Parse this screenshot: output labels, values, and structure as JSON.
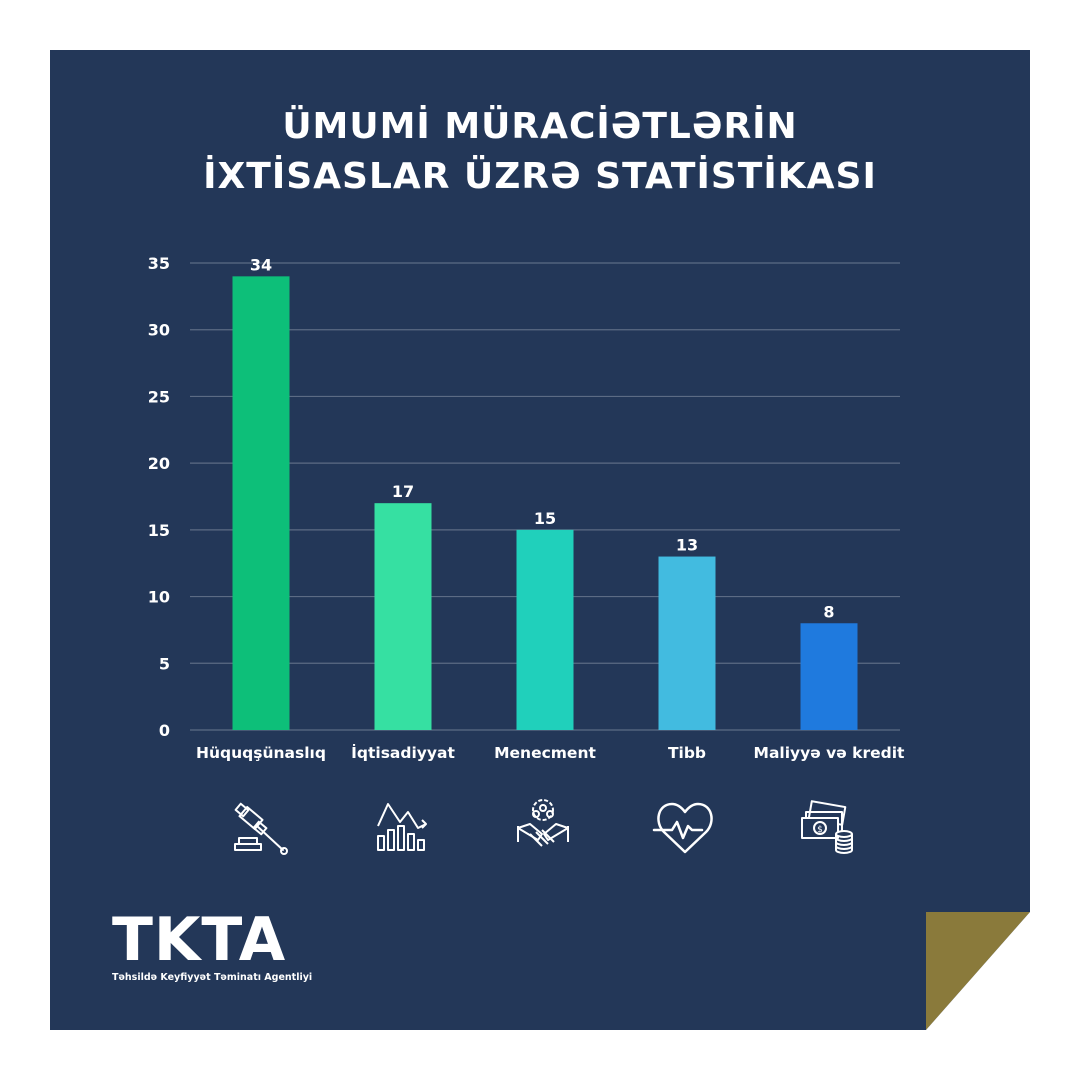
{
  "title": {
    "line1": "ÜMUMİ MÜRACİƏTLƏRİN",
    "line2": "İXTİSASLAR ÜZRƏ STATİSTİKASI"
  },
  "logo": {
    "mark": "TKTA",
    "subtitle": "Təhsildə Keyfiyyət Təminatı Agentliyi"
  },
  "colors": {
    "background": "#233758",
    "fold": "#8a7a3b",
    "grid": "#5c6b84"
  },
  "icons": [
    "gavel-icon",
    "economics-chart-icon",
    "management-team-icon",
    "heartbeat-icon",
    "money-coins-icon"
  ],
  "chart_data": {
    "type": "bar",
    "categories": [
      "Hüquqşünaslıq",
      "İqtisadiyyat",
      "Menecment",
      "Tibb",
      "Maliyyə və kredit"
    ],
    "values": [
      34,
      17,
      15,
      13,
      8
    ],
    "data_labels": [
      "34",
      "17",
      "15",
      "13",
      "8"
    ],
    "bar_colors": [
      "#0dbf79",
      "#36e0a2",
      "#20d0bb",
      "#42bbe0",
      "#1f7ade"
    ],
    "ylim": [
      0,
      35
    ],
    "yticks": [
      0,
      5,
      10,
      15,
      20,
      25,
      30,
      35
    ],
    "grid": true,
    "title": "ÜMUMİ MÜRACİƏTLƏRİN İXTİSASLAR ÜZRƏ STATİSTİKASI",
    "xlabel": "",
    "ylabel": ""
  }
}
